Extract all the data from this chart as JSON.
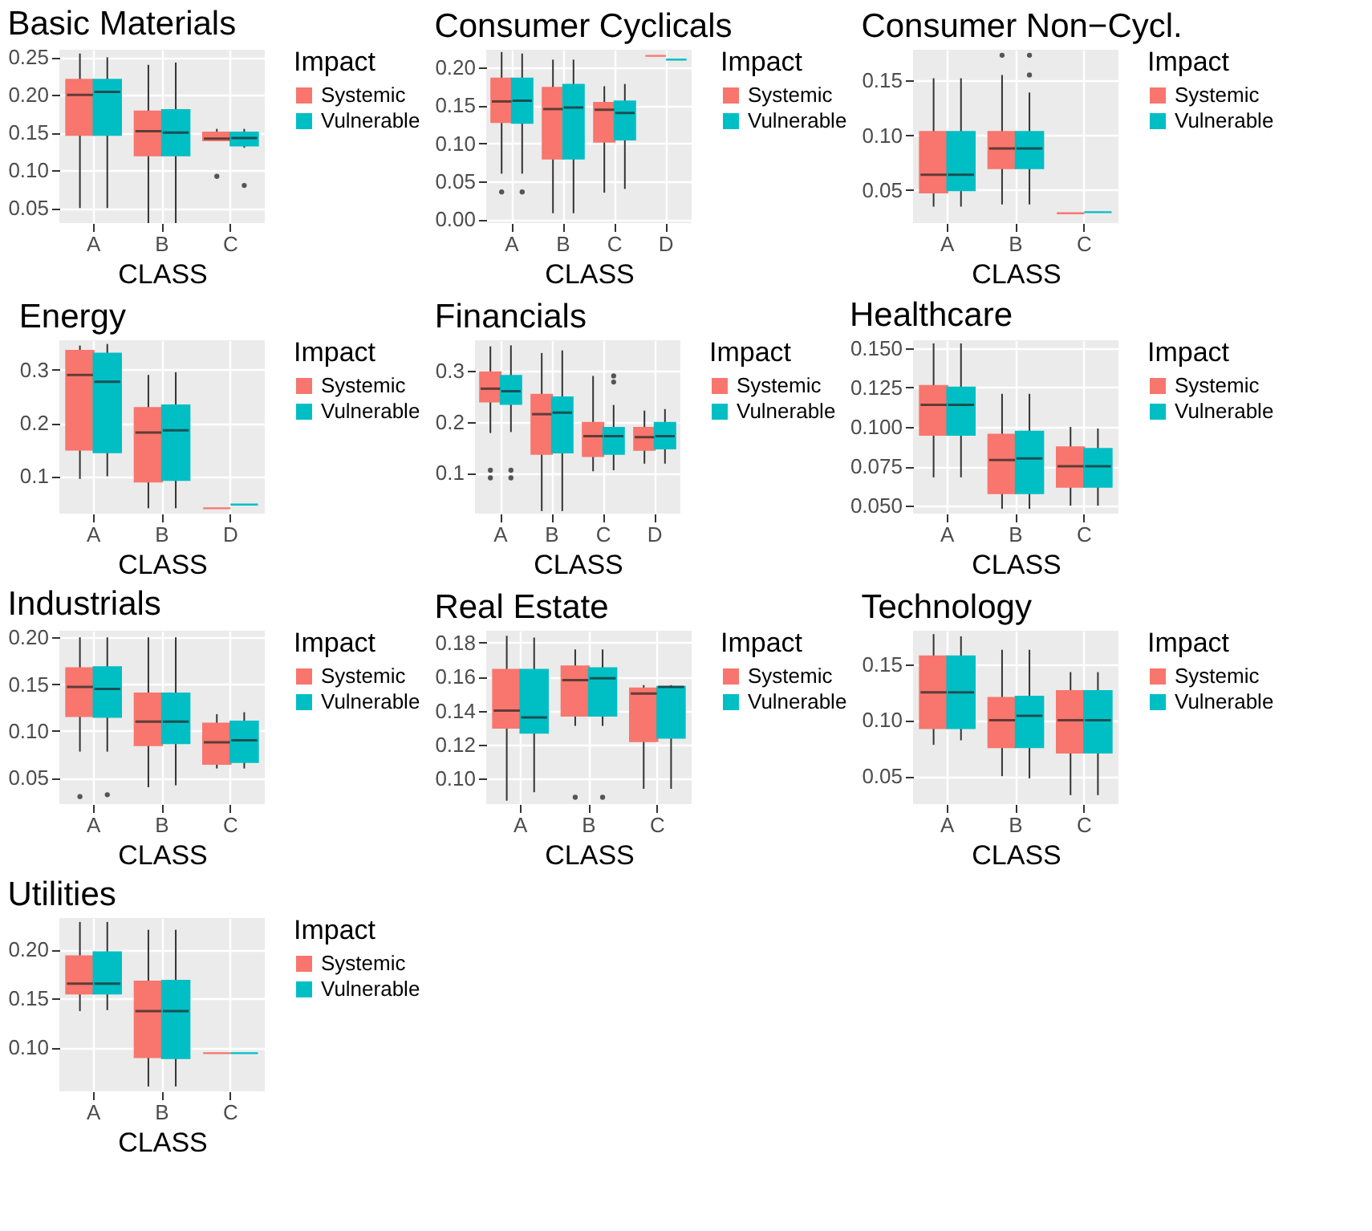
{
  "chart_data": [
    {
      "type": "box",
      "title": "Basic Materials",
      "xlabel": "CLASS",
      "legend_title": "Impact",
      "legend": "right",
      "grid": true,
      "categories": [
        "A",
        "B",
        "C"
      ],
      "ylim": [
        0.03,
        0.26
      ],
      "yticks": [
        {
          "value": 0.05,
          "label": "0.05"
        },
        {
          "value": 0.1,
          "label": "0.10"
        },
        {
          "value": 0.15,
          "label": "0.15"
        },
        {
          "value": 0.2,
          "label": "0.20"
        },
        {
          "value": 0.25,
          "label": "0.25"
        }
      ],
      "series": [
        {
          "name": "Systemic",
          "color": "#f8766d",
          "boxes": [
            {
              "low": 0.05,
              "q1": 0.147,
              "median": 0.2,
              "q3": 0.22,
              "high": 0.255
            },
            {
              "low": 0.03,
              "q1": 0.12,
              "median": 0.152,
              "q3": 0.178,
              "high": 0.24
            },
            {
              "low": 0.14,
              "q1": 0.14,
              "median": 0.142,
              "q3": 0.15,
              "high": 0.155,
              "outliers": [
                0.092
              ]
            }
          ]
        },
        {
          "name": "Vulnerable",
          "color": "#00bfc4",
          "boxes": [
            {
              "low": 0.05,
              "q1": 0.147,
              "median": 0.204,
              "q3": 0.22,
              "high": 0.25
            },
            {
              "low": 0.03,
              "q1": 0.12,
              "median": 0.15,
              "q3": 0.18,
              "high": 0.243
            },
            {
              "low": 0.13,
              "q1": 0.133,
              "median": 0.143,
              "q3": 0.15,
              "high": 0.155,
              "outliers": [
                0.08
              ]
            }
          ]
        }
      ]
    },
    {
      "type": "box",
      "title": "Consumer Cyclicals",
      "xlabel": "CLASS",
      "legend_title": "Impact",
      "legend": "right",
      "grid": true,
      "categories": [
        "A",
        "B",
        "C",
        "D"
      ],
      "ylim": [
        -0.005,
        0.223
      ],
      "yticks": [
        {
          "value": 0,
          "label": "0.00"
        },
        {
          "value": 0.05,
          "label": "0.05"
        },
        {
          "value": 0.1,
          "label": "0.10"
        },
        {
          "value": 0.15,
          "label": "0.15"
        },
        {
          "value": 0.2,
          "label": "0.20"
        }
      ],
      "series": [
        {
          "name": "Systemic",
          "color": "#f8766d",
          "boxes": [
            {
              "low": 0.06,
              "q1": 0.128,
              "median": 0.155,
              "q3": 0.185,
              "high": 0.22,
              "outliers": [
                0.036
              ]
            },
            {
              "low": 0.008,
              "q1": 0.08,
              "median": 0.145,
              "q3": 0.173,
              "high": 0.21
            },
            {
              "low": 0.035,
              "q1": 0.102,
              "median": 0.144,
              "q3": 0.153,
              "high": 0.175
            },
            {
              "low": 0.215,
              "q1": 0.215,
              "median": 0.215,
              "q3": 0.215,
              "high": 0.215
            }
          ]
        },
        {
          "name": "Vulnerable",
          "color": "#00bfc4",
          "boxes": [
            {
              "low": 0.06,
              "q1": 0.127,
              "median": 0.156,
              "q3": 0.185,
              "high": 0.218,
              "outliers": [
                0.036
              ]
            },
            {
              "low": 0.008,
              "q1": 0.08,
              "median": 0.147,
              "q3": 0.177,
              "high": 0.21
            },
            {
              "low": 0.04,
              "q1": 0.105,
              "median": 0.14,
              "q3": 0.155,
              "high": 0.178
            },
            {
              "low": 0.21,
              "q1": 0.21,
              "median": 0.21,
              "q3": 0.21,
              "high": 0.21
            }
          ]
        }
      ]
    },
    {
      "type": "box",
      "title": "Consumer Non−Cycl.",
      "xlabel": "CLASS",
      "legend_title": "Impact",
      "legend": "right",
      "grid": true,
      "categories": [
        "A",
        "B",
        "C"
      ],
      "ylim": [
        0.02,
        0.178
      ],
      "yticks": [
        {
          "value": 0.05,
          "label": "0.05"
        },
        {
          "value": 0.1,
          "label": "0.10"
        },
        {
          "value": 0.15,
          "label": "0.15"
        }
      ],
      "series": [
        {
          "name": "Systemic",
          "color": "#f8766d",
          "boxes": [
            {
              "low": 0.035,
              "q1": 0.048,
              "median": 0.064,
              "q3": 0.103,
              "high": 0.152
            },
            {
              "low": 0.037,
              "q1": 0.07,
              "median": 0.088,
              "q3": 0.103,
              "high": 0.155,
              "outliers": [
                0.173
              ]
            },
            {
              "low": 0.029,
              "q1": 0.029,
              "median": 0.029,
              "q3": 0.029,
              "high": 0.029
            }
          ]
        },
        {
          "name": "Vulnerable",
          "color": "#00bfc4",
          "boxes": [
            {
              "low": 0.035,
              "q1": 0.05,
              "median": 0.064,
              "q3": 0.103,
              "high": 0.152
            },
            {
              "low": 0.037,
              "q1": 0.07,
              "median": 0.088,
              "q3": 0.103,
              "high": 0.139,
              "outliers": [
                0.155,
                0.173
              ]
            },
            {
              "low": 0.03,
              "q1": 0.03,
              "median": 0.03,
              "q3": 0.03,
              "high": 0.03
            }
          ]
        }
      ]
    },
    {
      "type": "box",
      "title": "Energy",
      "xlabel": "CLASS",
      "legend_title": "Impact",
      "legend": "right",
      "grid": true,
      "categories": [
        "A",
        "B",
        "D"
      ],
      "ylim": [
        0.03,
        0.355
      ],
      "yticks": [
        {
          "value": 0.1,
          "label": "0.1"
        },
        {
          "value": 0.2,
          "label": "0.2"
        },
        {
          "value": 0.3,
          "label": "0.3"
        }
      ],
      "series": [
        {
          "name": "Systemic",
          "color": "#f8766d",
          "boxes": [
            {
              "low": 0.095,
              "q1": 0.15,
              "median": 0.29,
              "q3": 0.335,
              "high": 0.345
            },
            {
              "low": 0.04,
              "q1": 0.09,
              "median": 0.182,
              "q3": 0.228,
              "high": 0.29
            },
            {
              "low": 0.04,
              "q1": 0.04,
              "median": 0.04,
              "q3": 0.04,
              "high": 0.04
            }
          ]
        },
        {
          "name": "Vulnerable",
          "color": "#00bfc4",
          "boxes": [
            {
              "low": 0.1,
              "q1": 0.145,
              "median": 0.277,
              "q3": 0.33,
              "high": 0.348
            },
            {
              "low": 0.04,
              "q1": 0.093,
              "median": 0.186,
              "q3": 0.233,
              "high": 0.295
            },
            {
              "low": 0.047,
              "q1": 0.047,
              "median": 0.047,
              "q3": 0.047,
              "high": 0.047
            }
          ]
        }
      ]
    },
    {
      "type": "box",
      "title": "Financials",
      "xlabel": "CLASS",
      "legend_title": "Impact",
      "legend": "right",
      "grid": true,
      "categories": [
        "A",
        "B",
        "C",
        "D"
      ],
      "ylim": [
        0.02,
        0.36
      ],
      "yticks": [
        {
          "value": 0.1,
          "label": "0.1"
        },
        {
          "value": 0.2,
          "label": "0.2"
        },
        {
          "value": 0.3,
          "label": "0.3"
        }
      ],
      "series": [
        {
          "name": "Systemic",
          "color": "#f8766d",
          "boxes": [
            {
              "low": 0.178,
              "q1": 0.24,
              "median": 0.265,
              "q3": 0.297,
              "high": 0.348,
              "outliers": [
                0.09,
                0.105
              ]
            },
            {
              "low": 0.025,
              "q1": 0.137,
              "median": 0.215,
              "q3": 0.253,
              "high": 0.335
            },
            {
              "low": 0.103,
              "q1": 0.133,
              "median": 0.172,
              "q3": 0.198,
              "high": 0.29
            },
            {
              "low": 0.118,
              "q1": 0.145,
              "median": 0.17,
              "q3": 0.188,
              "high": 0.222
            }
          ]
        },
        {
          "name": "Vulnerable",
          "color": "#00bfc4",
          "boxes": [
            {
              "low": 0.18,
              "q1": 0.235,
              "median": 0.26,
              "q3": 0.29,
              "high": 0.35,
              "outliers": [
                0.09,
                0.105
              ]
            },
            {
              "low": 0.025,
              "q1": 0.14,
              "median": 0.218,
              "q3": 0.248,
              "high": 0.34
            },
            {
              "low": 0.105,
              "q1": 0.137,
              "median": 0.172,
              "q3": 0.188,
              "high": 0.233,
              "outliers": [
                0.278,
                0.29
              ]
            },
            {
              "low": 0.118,
              "q1": 0.148,
              "median": 0.172,
              "q3": 0.198,
              "high": 0.225
            }
          ]
        }
      ]
    },
    {
      "type": "box",
      "title": "Healthcare",
      "xlabel": "CLASS",
      "legend_title": "Impact",
      "legend": "right",
      "grid": true,
      "categories": [
        "A",
        "B",
        "C"
      ],
      "ylim": [
        0.045,
        0.155
      ],
      "yticks": [
        {
          "value": 0.05,
          "label": "0.050"
        },
        {
          "value": 0.075,
          "label": "0.075"
        },
        {
          "value": 0.1,
          "label": "0.100"
        },
        {
          "value": 0.125,
          "label": "0.125"
        },
        {
          "value": 0.15,
          "label": "0.150"
        }
      ],
      "series": [
        {
          "name": "Systemic",
          "color": "#f8766d",
          "boxes": [
            {
              "low": 0.068,
              "q1": 0.095,
              "median": 0.114,
              "q3": 0.126,
              "high": 0.153
            },
            {
              "low": 0.048,
              "q1": 0.058,
              "median": 0.079,
              "q3": 0.095,
              "high": 0.121
            },
            {
              "low": 0.05,
              "q1": 0.062,
              "median": 0.075,
              "q3": 0.087,
              "high": 0.1
            }
          ]
        },
        {
          "name": "Vulnerable",
          "color": "#00bfc4",
          "boxes": [
            {
              "low": 0.068,
              "q1": 0.095,
              "median": 0.114,
              "q3": 0.125,
              "high": 0.153
            },
            {
              "low": 0.048,
              "q1": 0.058,
              "median": 0.08,
              "q3": 0.097,
              "high": 0.121
            },
            {
              "low": 0.05,
              "q1": 0.062,
              "median": 0.075,
              "q3": 0.086,
              "high": 0.099
            }
          ]
        }
      ]
    },
    {
      "type": "box",
      "title": "Industrials",
      "xlabel": "CLASS",
      "legend_title": "Impact",
      "legend": "right",
      "grid": true,
      "categories": [
        "A",
        "B",
        "C"
      ],
      "ylim": [
        0.022,
        0.207
      ],
      "yticks": [
        {
          "value": 0.05,
          "label": "0.05"
        },
        {
          "value": 0.1,
          "label": "0.10"
        },
        {
          "value": 0.15,
          "label": "0.15"
        },
        {
          "value": 0.2,
          "label": "0.20"
        }
      ],
      "series": [
        {
          "name": "Systemic",
          "color": "#f8766d",
          "boxes": [
            {
              "low": 0.078,
              "q1": 0.116,
              "median": 0.147,
              "q3": 0.167,
              "high": 0.2,
              "outliers": [
                0.03
              ]
            },
            {
              "low": 0.04,
              "q1": 0.085,
              "median": 0.11,
              "q3": 0.14,
              "high": 0.2
            },
            {
              "low": 0.06,
              "q1": 0.065,
              "median": 0.088,
              "q3": 0.108,
              "high": 0.118
            }
          ]
        },
        {
          "name": "Vulnerable",
          "color": "#00bfc4",
          "boxes": [
            {
              "low": 0.078,
              "q1": 0.115,
              "median": 0.145,
              "q3": 0.168,
              "high": 0.2,
              "outliers": [
                0.032
              ]
            },
            {
              "low": 0.042,
              "q1": 0.087,
              "median": 0.11,
              "q3": 0.14,
              "high": 0.2
            },
            {
              "low": 0.06,
              "q1": 0.067,
              "median": 0.09,
              "q3": 0.11,
              "high": 0.12
            }
          ]
        }
      ]
    },
    {
      "type": "box",
      "title": "Real Estate",
      "xlabel": "CLASS",
      "legend_title": "Impact",
      "legend": "right",
      "grid": true,
      "categories": [
        "A",
        "B",
        "C"
      ],
      "ylim": [
        0.085,
        0.187
      ],
      "yticks": [
        {
          "value": 0.1,
          "label": "0.10"
        },
        {
          "value": 0.12,
          "label": "0.12"
        },
        {
          "value": 0.14,
          "label": "0.14"
        },
        {
          "value": 0.16,
          "label": "0.16"
        },
        {
          "value": 0.18,
          "label": "0.18"
        }
      ],
      "series": [
        {
          "name": "Systemic",
          "color": "#f8766d",
          "boxes": [
            {
              "low": 0.087,
              "q1": 0.13,
              "median": 0.14,
              "q3": 0.164,
              "high": 0.184
            },
            {
              "low": 0.131,
              "q1": 0.137,
              "median": 0.158,
              "q3": 0.166,
              "high": 0.176,
              "outliers": [
                0.089
              ]
            },
            {
              "low": 0.094,
              "q1": 0.122,
              "median": 0.15,
              "q3": 0.153,
              "high": 0.155
            }
          ]
        },
        {
          "name": "Vulnerable",
          "color": "#00bfc4",
          "boxes": [
            {
              "low": 0.092,
              "q1": 0.127,
              "median": 0.136,
              "q3": 0.164,
              "high": 0.183
            },
            {
              "low": 0.131,
              "q1": 0.137,
              "median": 0.159,
              "q3": 0.165,
              "high": 0.176,
              "outliers": [
                0.089
              ]
            },
            {
              "low": 0.094,
              "q1": 0.124,
              "median": 0.154,
              "q3": 0.154,
              "high": 0.155
            }
          ]
        }
      ]
    },
    {
      "type": "box",
      "title": "Technology",
      "xlabel": "CLASS",
      "legend_title": "Impact",
      "legend": "right",
      "grid": true,
      "categories": [
        "A",
        "B",
        "C"
      ],
      "ylim": [
        0.025,
        0.18
      ],
      "yticks": [
        {
          "value": 0.05,
          "label": "0.05"
        },
        {
          "value": 0.1,
          "label": "0.10"
        },
        {
          "value": 0.15,
          "label": "0.15"
        }
      ],
      "series": [
        {
          "name": "Systemic",
          "color": "#f8766d",
          "boxes": [
            {
              "low": 0.078,
              "q1": 0.093,
              "median": 0.125,
              "q3": 0.157,
              "high": 0.177
            },
            {
              "low": 0.05,
              "q1": 0.076,
              "median": 0.1,
              "q3": 0.12,
              "high": 0.163
            },
            {
              "low": 0.033,
              "q1": 0.071,
              "median": 0.1,
              "q3": 0.126,
              "high": 0.143
            }
          ]
        },
        {
          "name": "Vulnerable",
          "color": "#00bfc4",
          "boxes": [
            {
              "low": 0.082,
              "q1": 0.093,
              "median": 0.125,
              "q3": 0.157,
              "high": 0.175
            },
            {
              "low": 0.048,
              "q1": 0.076,
              "median": 0.104,
              "q3": 0.121,
              "high": 0.163
            },
            {
              "low": 0.033,
              "q1": 0.071,
              "median": 0.1,
              "q3": 0.126,
              "high": 0.143
            }
          ]
        }
      ]
    },
    {
      "type": "box",
      "title": "Utilities",
      "xlabel": "CLASS",
      "legend_title": "Impact",
      "legend": "right",
      "grid": true,
      "categories": [
        "A",
        "B",
        "C"
      ],
      "ylim": [
        0.055,
        0.232
      ],
      "yticks": [
        {
          "value": 0.1,
          "label": "0.10"
        },
        {
          "value": 0.15,
          "label": "0.15"
        },
        {
          "value": 0.2,
          "label": "0.20"
        }
      ],
      "series": [
        {
          "name": "Systemic",
          "color": "#f8766d",
          "boxes": [
            {
              "low": 0.137,
              "q1": 0.155,
              "median": 0.165,
              "q3": 0.193,
              "high": 0.228
            },
            {
              "low": 0.06,
              "q1": 0.09,
              "median": 0.137,
              "q3": 0.167,
              "high": 0.22
            },
            {
              "low": 0.094,
              "q1": 0.094,
              "median": 0.094,
              "q3": 0.094,
              "high": 0.094
            }
          ]
        },
        {
          "name": "Vulnerable",
          "color": "#00bfc4",
          "boxes": [
            {
              "low": 0.138,
              "q1": 0.155,
              "median": 0.165,
              "q3": 0.197,
              "high": 0.228
            },
            {
              "low": 0.06,
              "q1": 0.089,
              "median": 0.137,
              "q3": 0.168,
              "high": 0.22
            },
            {
              "low": 0.094,
              "q1": 0.094,
              "median": 0.094,
              "q3": 0.094,
              "high": 0.094
            }
          ]
        }
      ]
    }
  ]
}
